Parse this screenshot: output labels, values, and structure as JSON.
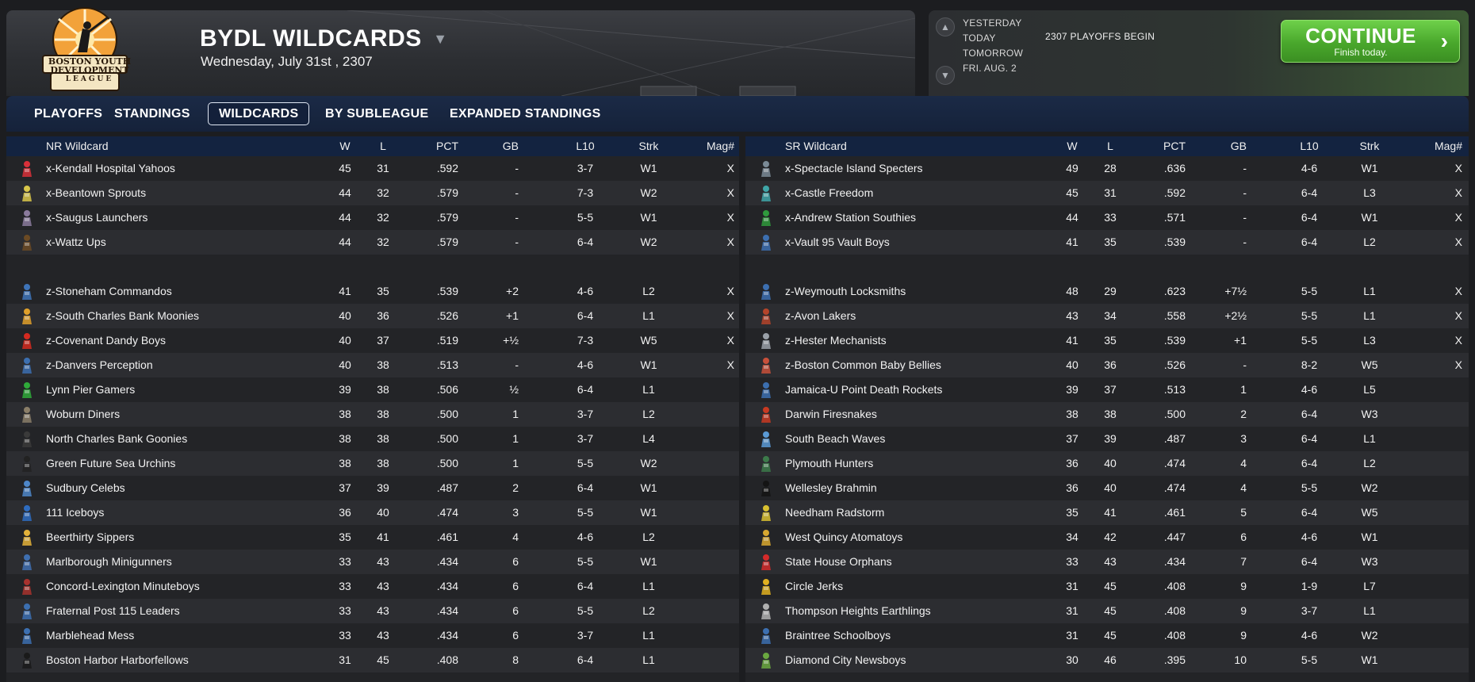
{
  "header": {
    "league_logo_name": "Boston Youth Development League logo",
    "logo_text_top": "BOSTON YOUTH",
    "logo_text_mid": "DEVELOPMENT",
    "logo_text_bottom": "LEAGUE",
    "title": "BYDL WILDCARDS",
    "date": "Wednesday, July 31st , 2307"
  },
  "calendar": {
    "days": [
      "YESTERDAY",
      "TODAY",
      "TOMORROW",
      "FRI. AUG. 2"
    ],
    "event": "2307 PLAYOFFS BEGIN"
  },
  "continue_button": {
    "label": "CONTINUE",
    "sublabel": "Finish today."
  },
  "tabs": [
    "PLAYOFFS",
    "STANDINGS",
    "WILDCARDS",
    "BY SUBLEAGUE",
    "EXPANDED STANDINGS"
  ],
  "active_tab": "WILDCARDS",
  "columns": [
    "W",
    "L",
    "PCT",
    "GB",
    "L10",
    "Strk",
    "Mag#"
  ],
  "left_table": {
    "title": "NR Wildcard",
    "rows": [
      {
        "team": "x-Kendall Hospital Yahoos",
        "w": "45",
        "l": "31",
        "pct": ".592",
        "gb": "-",
        "l10": "3-7",
        "strk": "W1",
        "mag": "X",
        "icon": "#d9303a"
      },
      {
        "team": "x-Beantown Sprouts",
        "w": "44",
        "l": "32",
        "pct": ".579",
        "gb": "-",
        "l10": "7-3",
        "strk": "W2",
        "mag": "X",
        "icon": "#d8c64a"
      },
      {
        "team": "x-Saugus Launchers",
        "w": "44",
        "l": "32",
        "pct": ".579",
        "gb": "-",
        "l10": "5-5",
        "strk": "W1",
        "mag": "X",
        "icon": "#8a7a9c"
      },
      {
        "team": "x-Wattz Ups",
        "w": "44",
        "l": "32",
        "pct": ".579",
        "gb": "-",
        "l10": "6-4",
        "strk": "W2",
        "mag": "X",
        "icon": "#6b4a24"
      },
      {
        "gap": true
      },
      {
        "team": "z-Stoneham Commandos",
        "w": "41",
        "l": "35",
        "pct": ".539",
        "gb": "+2",
        "l10": "4-6",
        "strk": "L2",
        "mag": "X",
        "icon": "#3e74b8"
      },
      {
        "team": "z-South Charles Bank Moonies",
        "w": "40",
        "l": "36",
        "pct": ".526",
        "gb": "+1",
        "l10": "6-4",
        "strk": "L1",
        "mag": "X",
        "icon": "#e0a02a"
      },
      {
        "team": "z-Covenant Dandy Boys",
        "w": "40",
        "l": "37",
        "pct": ".519",
        "gb": "+½",
        "l10": "7-3",
        "strk": "W5",
        "mag": "X",
        "icon": "#d42a20"
      },
      {
        "team": "z-Danvers Perception",
        "w": "40",
        "l": "38",
        "pct": ".513",
        "gb": "-",
        "l10": "4-6",
        "strk": "W1",
        "mag": "X",
        "icon": "#3c6fb0"
      },
      {
        "team": "Lynn Pier Gamers",
        "w": "39",
        "l": "38",
        "pct": ".506",
        "gb": "½",
        "l10": "6-4",
        "strk": "L1",
        "mag": "",
        "icon": "#2faa3a"
      },
      {
        "team": "Woburn Diners",
        "w": "38",
        "l": "38",
        "pct": ".500",
        "gb": "1",
        "l10": "3-7",
        "strk": "L2",
        "mag": "",
        "icon": "#8a7e68"
      },
      {
        "team": "North Charles Bank Goonies",
        "w": "38",
        "l": "38",
        "pct": ".500",
        "gb": "1",
        "l10": "3-7",
        "strk": "L4",
        "mag": "",
        "icon": "#3a3a3a"
      },
      {
        "team": "Green Future Sea Urchins",
        "w": "38",
        "l": "38",
        "pct": ".500",
        "gb": "1",
        "l10": "5-5",
        "strk": "W2",
        "mag": "",
        "icon": "#222222"
      },
      {
        "team": "Sudbury Celebs",
        "w": "37",
        "l": "39",
        "pct": ".487",
        "gb": "2",
        "l10": "6-4",
        "strk": "W1",
        "mag": "",
        "icon": "#4d86c8"
      },
      {
        "team": "111 Iceboys",
        "w": "36",
        "l": "40",
        "pct": ".474",
        "gb": "3",
        "l10": "5-5",
        "strk": "W1",
        "mag": "",
        "icon": "#2e6cc0"
      },
      {
        "team": "Beerthirty Sippers",
        "w": "35",
        "l": "41",
        "pct": ".461",
        "gb": "4",
        "l10": "4-6",
        "strk": "L2",
        "mag": "",
        "icon": "#e3b23a"
      },
      {
        "team": "Marlborough Minigunners",
        "w": "33",
        "l": "43",
        "pct": ".434",
        "gb": "6",
        "l10": "5-5",
        "strk": "W1",
        "mag": "",
        "icon": "#3f6fb0"
      },
      {
        "team": "Concord-Lexington Minuteboys",
        "w": "33",
        "l": "43",
        "pct": ".434",
        "gb": "6",
        "l10": "6-4",
        "strk": "L1",
        "mag": "",
        "icon": "#a8322e"
      },
      {
        "team": "Fraternal Post 115 Leaders",
        "w": "33",
        "l": "43",
        "pct": ".434",
        "gb": "6",
        "l10": "5-5",
        "strk": "L2",
        "mag": "",
        "icon": "#3c6fb0"
      },
      {
        "team": "Marblehead Mess",
        "w": "33",
        "l": "43",
        "pct": ".434",
        "gb": "6",
        "l10": "3-7",
        "strk": "L1",
        "mag": "",
        "icon": "#3c6fb0"
      },
      {
        "team": "Boston Harbor Harborfellows",
        "w": "31",
        "l": "45",
        "pct": ".408",
        "gb": "8",
        "l10": "6-4",
        "strk": "L1",
        "mag": "",
        "icon": "#1a1a1a"
      }
    ]
  },
  "right_table": {
    "title": "SR Wildcard",
    "rows": [
      {
        "team": "x-Spectacle Island Specters",
        "w": "49",
        "l": "28",
        "pct": ".636",
        "gb": "-",
        "l10": "4-6",
        "strk": "W1",
        "mag": "X",
        "icon": "#7a8a96"
      },
      {
        "team": "x-Castle Freedom",
        "w": "45",
        "l": "31",
        "pct": ".592",
        "gb": "-",
        "l10": "6-4",
        "strk": "L3",
        "mag": "X",
        "icon": "#3fa6a8"
      },
      {
        "team": "x-Andrew Station Southies",
        "w": "44",
        "l": "33",
        "pct": ".571",
        "gb": "-",
        "l10": "6-4",
        "strk": "W1",
        "mag": "X",
        "icon": "#2f9a3c"
      },
      {
        "team": "x-Vault 95 Vault Boys",
        "w": "41",
        "l": "35",
        "pct": ".539",
        "gb": "-",
        "l10": "6-4",
        "strk": "L2",
        "mag": "X",
        "icon": "#3c6fb0"
      },
      {
        "gap": true
      },
      {
        "team": "z-Weymouth Locksmiths",
        "w": "48",
        "l": "29",
        "pct": ".623",
        "gb": "+7½",
        "l10": "5-5",
        "strk": "L1",
        "mag": "X",
        "icon": "#3c6fb0"
      },
      {
        "team": "z-Avon Lakers",
        "w": "43",
        "l": "34",
        "pct": ".558",
        "gb": "+2½",
        "l10": "5-5",
        "strk": "L1",
        "mag": "X",
        "icon": "#b4442a"
      },
      {
        "team": "z-Hester Mechanists",
        "w": "41",
        "l": "35",
        "pct": ".539",
        "gb": "+1",
        "l10": "5-5",
        "strk": "L3",
        "mag": "X",
        "icon": "#9aa0a8"
      },
      {
        "team": "z-Boston Common Baby Bellies",
        "w": "40",
        "l": "36",
        "pct": ".526",
        "gb": "-",
        "l10": "8-2",
        "strk": "W5",
        "mag": "X",
        "icon": "#c8503a"
      },
      {
        "team": "Jamaica-U Point Death Rockets",
        "w": "39",
        "l": "37",
        "pct": ".513",
        "gb": "1",
        "l10": "4-6",
        "strk": "L5",
        "mag": "",
        "icon": "#3c6fb0"
      },
      {
        "team": "Darwin Firesnakes",
        "w": "38",
        "l": "38",
        "pct": ".500",
        "gb": "2",
        "l10": "6-4",
        "strk": "W3",
        "mag": "",
        "icon": "#c83a22"
      },
      {
        "team": "South Beach Waves",
        "w": "37",
        "l": "39",
        "pct": ".487",
        "gb": "3",
        "l10": "6-4",
        "strk": "L1",
        "mag": "",
        "icon": "#5a9ad6"
      },
      {
        "team": "Plymouth Hunters",
        "w": "36",
        "l": "40",
        "pct": ".474",
        "gb": "4",
        "l10": "6-4",
        "strk": "L2",
        "mag": "",
        "icon": "#3c7a4a"
      },
      {
        "team": "Wellesley Brahmin",
        "w": "36",
        "l": "40",
        "pct": ".474",
        "gb": "4",
        "l10": "5-5",
        "strk": "W2",
        "mag": "",
        "icon": "#141414"
      },
      {
        "team": "Needham Radstorm",
        "w": "35",
        "l": "41",
        "pct": ".461",
        "gb": "5",
        "l10": "6-4",
        "strk": "W5",
        "mag": "",
        "icon": "#d8c030"
      },
      {
        "team": "West Quincy Atomatoys",
        "w": "34",
        "l": "42",
        "pct": ".447",
        "gb": "6",
        "l10": "4-6",
        "strk": "W1",
        "mag": "",
        "icon": "#d8a830"
      },
      {
        "team": "State House Orphans",
        "w": "33",
        "l": "43",
        "pct": ".434",
        "gb": "7",
        "l10": "6-4",
        "strk": "W3",
        "mag": "",
        "icon": "#d42a2a"
      },
      {
        "team": "Circle Jerks",
        "w": "31",
        "l": "45",
        "pct": ".408",
        "gb": "9",
        "l10": "1-9",
        "strk": "L7",
        "mag": "",
        "icon": "#e0b020"
      },
      {
        "team": "Thompson Heights Earthlings",
        "w": "31",
        "l": "45",
        "pct": ".408",
        "gb": "9",
        "l10": "3-7",
        "strk": "L1",
        "mag": "",
        "icon": "#b0b0b0"
      },
      {
        "team": "Braintree Schoolboys",
        "w": "31",
        "l": "45",
        "pct": ".408",
        "gb": "9",
        "l10": "4-6",
        "strk": "W2",
        "mag": "",
        "icon": "#3c6fb0"
      },
      {
        "team": "Diamond City Newsboys",
        "w": "30",
        "l": "46",
        "pct": ".395",
        "gb": "10",
        "l10": "5-5",
        "strk": "W1",
        "mag": "",
        "icon": "#6aa840"
      }
    ]
  },
  "colors": {
    "accent_green": "#49a72c",
    "tab_bar": "#1b2a46",
    "header_row": "#132340"
  }
}
